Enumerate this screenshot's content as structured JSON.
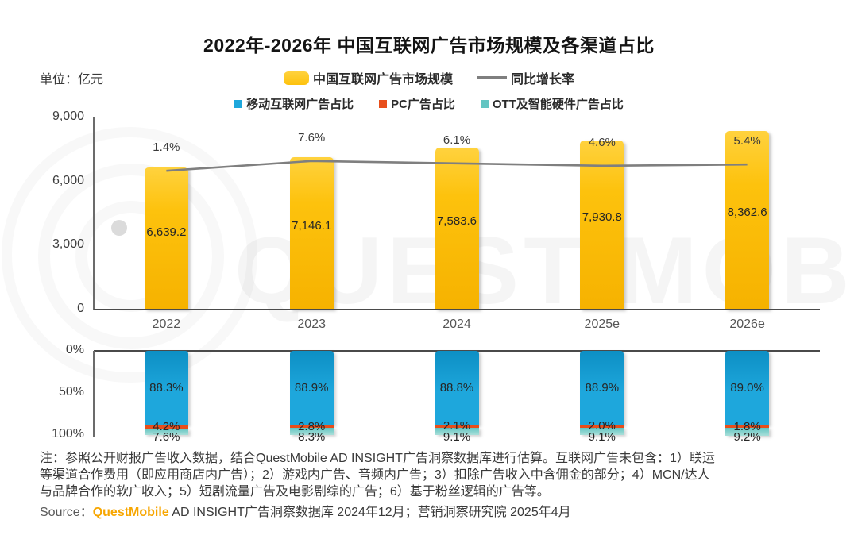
{
  "title": "2022年-2026年 中国互联网广告市场规模及各渠道占比",
  "unit_label": "单位：亿元",
  "legend": {
    "market_size": "中国互联网广告市场规模",
    "growth_rate": "同比增长率",
    "mobile": "移动互联网广告占比",
    "pc": "PC广告占比",
    "ott": "OTT及智能硬件广告占比"
  },
  "colors": {
    "bar_yellow": "#FDC20D",
    "bar_yellow_light": "#FFD23E",
    "bar_yellow_deep": "#F6B200",
    "line_gray": "#7F7F7F",
    "mobile_blue": "#1EA7DC",
    "mobile_blue_dark": "#0D8FC4",
    "pc_red": "#E84E1B",
    "ott_teal": "#63C5C2",
    "ott_teal_light": "#A9DFD9",
    "source_orange": "#F7A600",
    "axis_dark": "#4a4a4a",
    "axis_mid": "#6b6b6b"
  },
  "chart_data": [
    {
      "type": "bar",
      "title": "中国互联网广告市场规模及同比增长率",
      "categories": [
        "2022",
        "2023",
        "2024",
        "2025e",
        "2026e"
      ],
      "series": [
        {
          "name": "中国互联网广告市场规模",
          "type": "bar",
          "unit": "亿元",
          "values": [
            6639.2,
            7146.1,
            7583.6,
            7930.8,
            8362.6
          ],
          "labels": [
            "6,639.2",
            "7,146.1",
            "7,583.6",
            "7,930.8",
            "8,362.6"
          ]
        },
        {
          "name": "同比增长率",
          "type": "line",
          "unit": "%",
          "values": [
            1.4,
            7.6,
            6.1,
            4.6,
            5.4
          ],
          "labels": [
            "1.4%",
            "7.6%",
            "6.1%",
            "4.6%",
            "5.4%"
          ]
        }
      ],
      "ylabel": "亿元",
      "ylim": [
        0,
        9000
      ],
      "yticks": [
        "0",
        "3,000",
        "6,000",
        "9,000"
      ],
      "grid": false,
      "legend_position": "top"
    },
    {
      "type": "stacked-bar",
      "percent": true,
      "axis_inverted": true,
      "categories": [
        "2022",
        "2023",
        "2024",
        "2025e",
        "2026e"
      ],
      "series": [
        {
          "name": "移动互联网广告占比",
          "values": [
            88.3,
            88.9,
            88.8,
            88.9,
            89.0
          ],
          "labels": [
            "88.3%",
            "88.9%",
            "88.8%",
            "88.9%",
            "89.0%"
          ]
        },
        {
          "name": "PC广告占比",
          "values": [
            4.2,
            2.8,
            2.1,
            2.0,
            1.8
          ],
          "labels": [
            "4.2%",
            "2.8%",
            "2.1%",
            "2.0%",
            "1.8%"
          ]
        },
        {
          "name": "OTT及智能硬件广告占比",
          "values": [
            7.6,
            8.3,
            9.1,
            9.1,
            9.2
          ],
          "labels": [
            "7.6%",
            "8.3%",
            "9.1%",
            "9.1%",
            "9.2%"
          ]
        }
      ],
      "ylim": [
        0,
        100
      ],
      "yticks": [
        "0%",
        "50%",
        "100%"
      ],
      "grid": false
    }
  ],
  "notes": {
    "lines": [
      "注：参照公开财报广告收入数据，结合QuestMobile AD INSIGHT广告洞察数据库进行估算。互联网广告未包含：1）联运",
      "等渠道合作费用（即应用商店内广告）；2）游戏内广告、音频内广告；3）扣除广告收入中含佣金的部分；4）MCN/达人",
      "与品牌合作的软广收入；5）短剧流量广告及电影剧综的广告；6）基于粉丝逻辑的广告等。"
    ]
  },
  "source": {
    "prefix": "Source：",
    "brand": "QuestMobile",
    "rest": " AD INSIGHT广告洞察数据库 2024年12月；营销洞察研究院 2025年4月"
  },
  "watermark": {
    "text": "QUEST MOBILE"
  }
}
